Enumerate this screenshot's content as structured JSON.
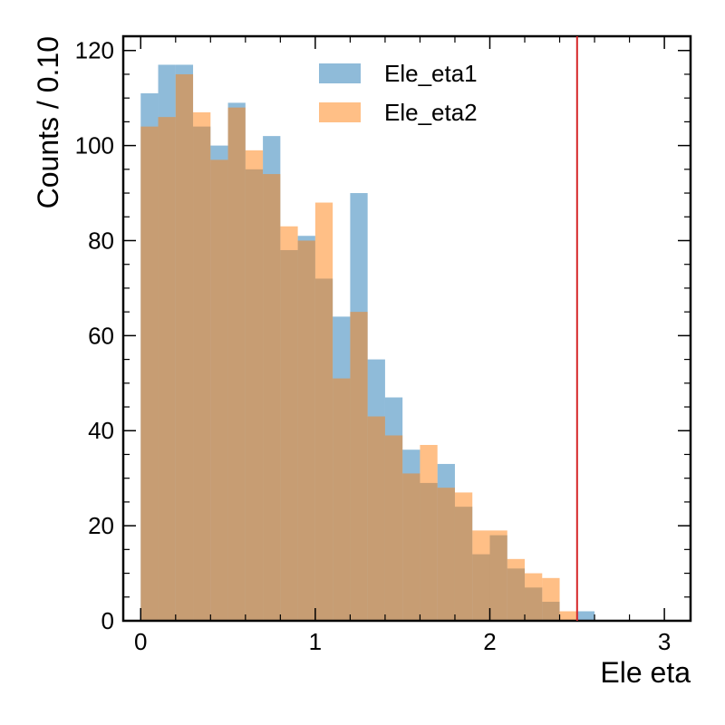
{
  "chart_data": {
    "type": "bar",
    "subtype": "histogram-overlay",
    "xlabel": "Ele eta",
    "ylabel": "Counts / 0.10",
    "xlim": [
      -0.1,
      3.15
    ],
    "ylim": [
      0,
      123
    ],
    "bin_width": 0.1,
    "x_ticks": [
      0,
      1,
      2,
      3
    ],
    "y_ticks": [
      0,
      20,
      40,
      60,
      80,
      100,
      120
    ],
    "bin_edges": [
      0.0,
      0.1,
      0.2,
      0.3,
      0.4,
      0.5,
      0.6,
      0.7,
      0.8,
      0.9,
      1.0,
      1.1,
      1.2,
      1.3,
      1.4,
      1.5,
      1.6,
      1.7,
      1.8,
      1.9,
      2.0,
      2.1,
      2.2,
      2.3,
      2.4,
      2.5,
      2.6,
      2.7,
      2.8,
      2.9,
      3.0
    ],
    "series": [
      {
        "name": "Ele_eta1",
        "color": "#1f77b4",
        "alpha": 0.5,
        "values": [
          111,
          117,
          117,
          104,
          100,
          109,
          95,
          102,
          78,
          81,
          72,
          64,
          90,
          55,
          47,
          36,
          29,
          33,
          24,
          14,
          18,
          11,
          7,
          4,
          0,
          2,
          0,
          0,
          0,
          0
        ]
      },
      {
        "name": "Ele_eta2",
        "color": "#ff7f0e",
        "alpha": 0.5,
        "values": [
          104,
          106,
          115,
          107,
          97,
          108,
          99,
          94,
          83,
          80,
          88,
          51,
          65,
          43,
          39,
          31,
          37,
          28,
          27,
          19,
          19,
          13,
          10,
          9,
          2,
          0,
          0,
          0,
          0,
          0
        ]
      }
    ],
    "vertical_line": {
      "x": 2.5,
      "color": "#d62728"
    },
    "legend": {
      "placement": "top-center",
      "entries": [
        "Ele_eta1",
        "Ele_eta2"
      ]
    },
    "grid": false
  }
}
